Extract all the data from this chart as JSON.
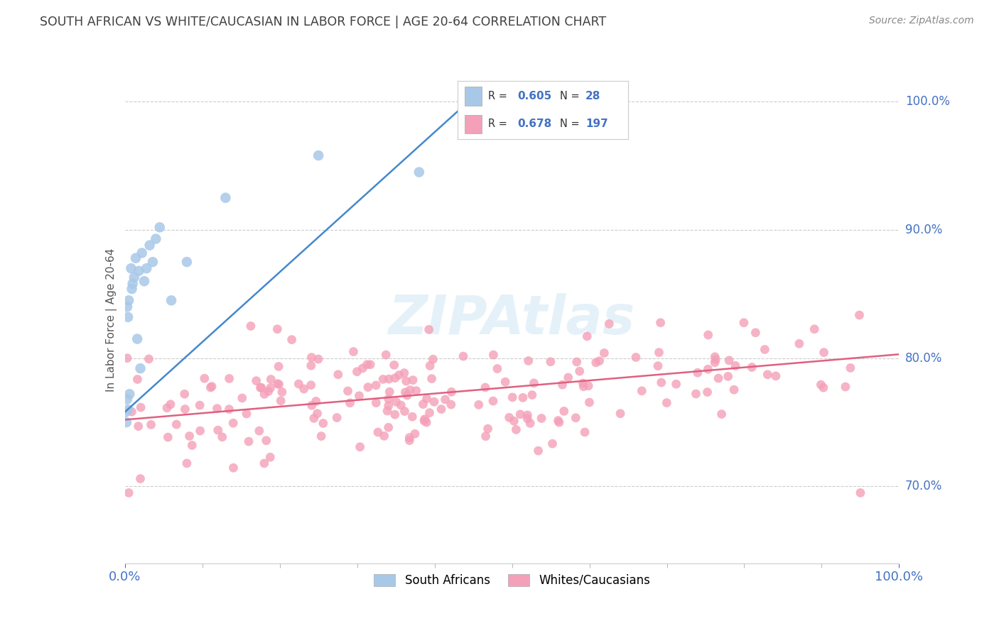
{
  "title": "SOUTH AFRICAN VS WHITE/CAUCASIAN IN LABOR FORCE | AGE 20-64 CORRELATION CHART",
  "source": "Source: ZipAtlas.com",
  "ylabel": "In Labor Force | Age 20-64",
  "watermark": "ZIPAtlas",
  "blue_scatter_color": "#a8c8e8",
  "pink_scatter_color": "#f4a0b8",
  "blue_line_color": "#4488cc",
  "pink_line_color": "#e06080",
  "title_color": "#404040",
  "axis_label_color": "#4472c4",
  "background_color": "#ffffff",
  "grid_color": "#cccccc",
  "sa_R": 0.605,
  "sa_N": 28,
  "wc_R": 0.678,
  "wc_N": 197,
  "xlim": [
    0.0,
    1.0
  ],
  "ylim": [
    0.64,
    1.02
  ],
  "yticks": [
    0.7,
    0.8,
    0.9,
    1.0
  ],
  "ytick_labels": [
    "70.0%",
    "80.0%",
    "90.0%",
    "100.0%"
  ],
  "xtick_labels": [
    "0.0%",
    "100.0%"
  ]
}
